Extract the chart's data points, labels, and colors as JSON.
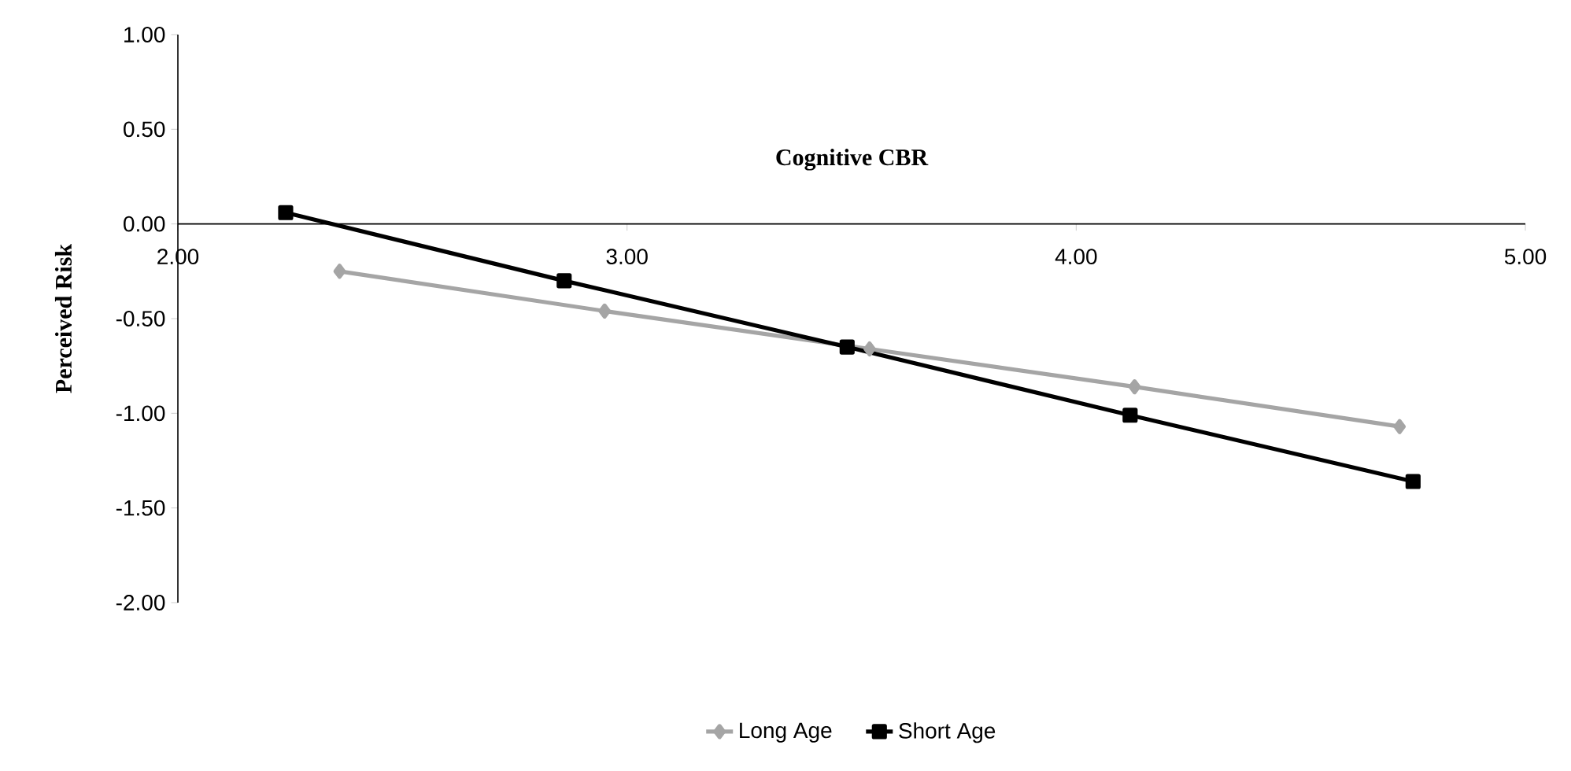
{
  "chart_data": {
    "type": "line",
    "xlabel": "Cognitive CBR",
    "ylabel": "Perceived Risk",
    "xlim": [
      2,
      5
    ],
    "ylim": [
      -2,
      1
    ],
    "xticks": [
      {
        "value": 2,
        "label": "2.00"
      },
      {
        "value": 3,
        "label": "3.00"
      },
      {
        "value": 4,
        "label": "4.00"
      },
      {
        "value": 5,
        "label": "5.00"
      }
    ],
    "yticks": [
      {
        "value": -2,
        "label": "-2.00"
      },
      {
        "value": -1.5,
        "label": "-1.50"
      },
      {
        "value": -1,
        "label": "-1.00"
      },
      {
        "value": -0.5,
        "label": "-0.50"
      },
      {
        "value": 0,
        "label": "0.00"
      },
      {
        "value": 0.5,
        "label": "0.50"
      },
      {
        "value": 1,
        "label": "1.00"
      }
    ],
    "legend": "bottom",
    "grid": false,
    "line_style": "solid",
    "series": [
      {
        "name": "Long Age",
        "color": "#a5a5a5",
        "marker": "diamond",
        "x": [
          2.36,
          2.95,
          3.54,
          4.13,
          4.72
        ],
        "values": [
          -0.25,
          -0.46,
          -0.66,
          -0.86,
          -1.07
        ]
      },
      {
        "name": "Short Age",
        "color": "#000000",
        "marker": "square",
        "x": [
          2.24,
          2.86,
          3.49,
          4.12,
          4.75
        ],
        "values": [
          0.06,
          -0.3,
          -0.65,
          -1.01,
          -1.36
        ]
      }
    ]
  }
}
